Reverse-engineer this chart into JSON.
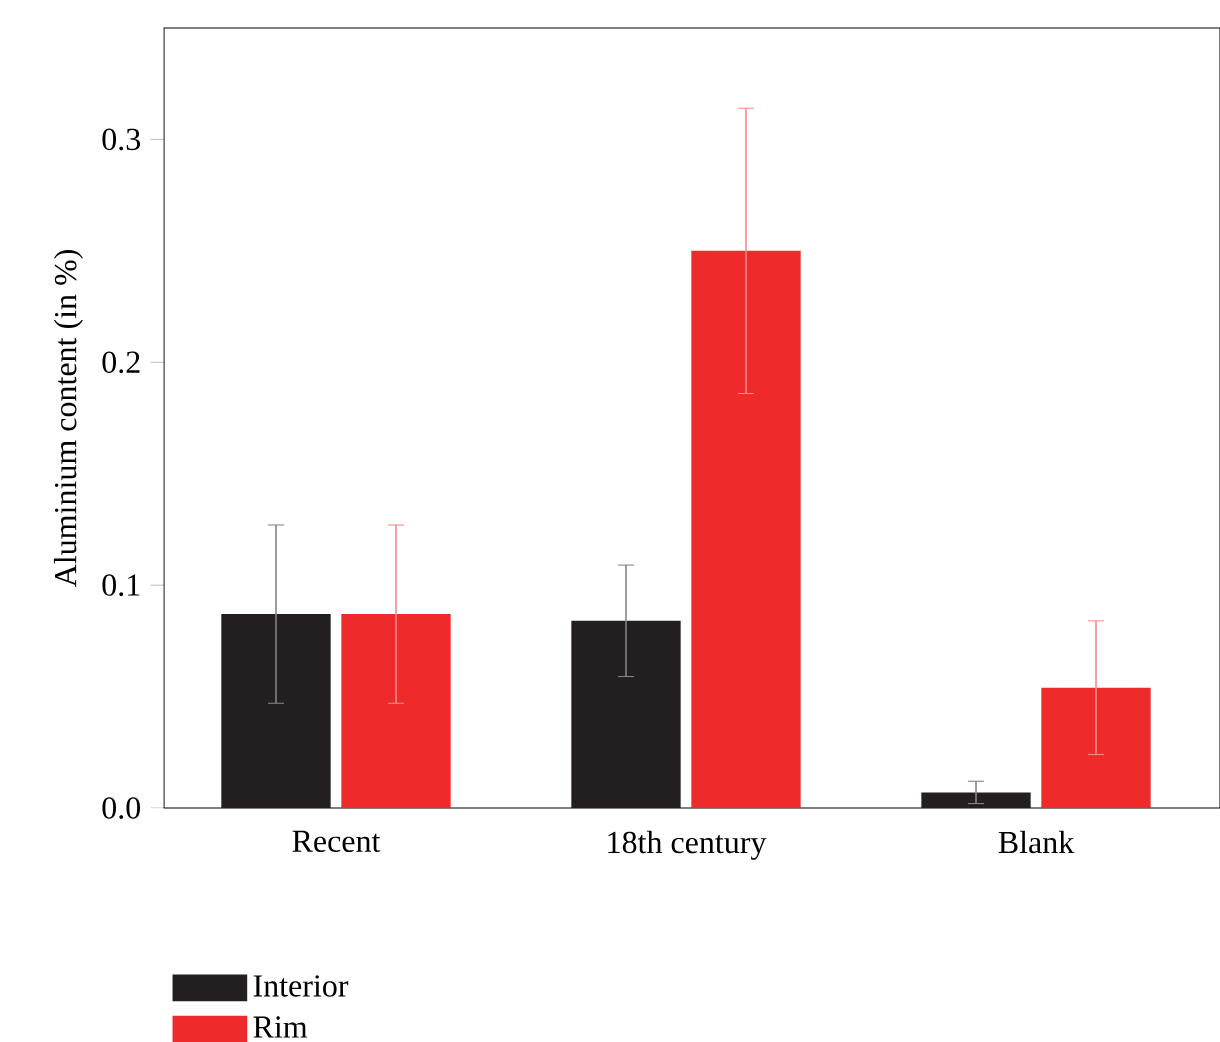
{
  "chart_data": {
    "type": "bar",
    "ylabel": "Aluminium content (in %)",
    "categories": [
      "Recent",
      "18th century",
      "Blank"
    ],
    "series": [
      {
        "name": "Interior",
        "color": "#231f20",
        "values": [
          0.087,
          0.084,
          0.007
        ],
        "errors": [
          0.04,
          0.025,
          0.005
        ]
      },
      {
        "name": "Rim",
        "color": "#ee2a2a",
        "values": [
          0.087,
          0.25,
          0.054
        ],
        "errors": [
          0.04,
          0.064,
          0.03
        ]
      }
    ],
    "ylim": [
      0,
      0.35
    ],
    "yticks": [
      {
        "value": 0,
        "label": "0.0"
      },
      {
        "value": 0.1,
        "label": "0.1"
      },
      {
        "value": 0.2,
        "label": "0.2"
      },
      {
        "value": 0.3,
        "label": "0.3"
      }
    ],
    "grid": false,
    "legend": "bottom left"
  }
}
